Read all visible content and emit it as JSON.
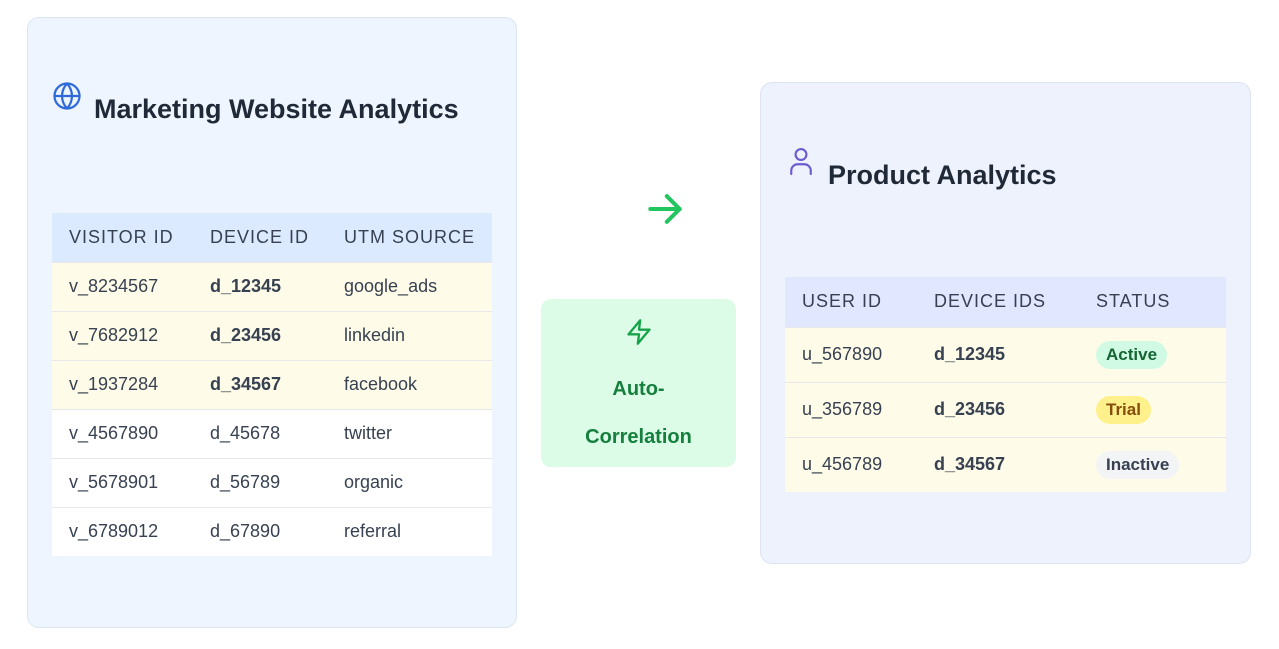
{
  "marketing": {
    "title": "Marketing Website Analytics",
    "icon": "globe-icon",
    "columns": [
      "VISITOR ID",
      "DEVICE ID",
      "UTM SOURCE"
    ],
    "rows": [
      {
        "visitor_id": "v_8234567",
        "device_id": "d_12345",
        "utm_source": "google_ads",
        "highlighted": true
      },
      {
        "visitor_id": "v_7682912",
        "device_id": "d_23456",
        "utm_source": "linkedin",
        "highlighted": true
      },
      {
        "visitor_id": "v_1937284",
        "device_id": "d_34567",
        "utm_source": "facebook",
        "highlighted": true
      },
      {
        "visitor_id": "v_4567890",
        "device_id": "d_45678",
        "utm_source": "twitter",
        "highlighted": false
      },
      {
        "visitor_id": "v_5678901",
        "device_id": "d_56789",
        "utm_source": "organic",
        "highlighted": false
      },
      {
        "visitor_id": "v_6789012",
        "device_id": "d_67890",
        "utm_source": "referral",
        "highlighted": false
      }
    ]
  },
  "connector": {
    "arrow_icon": "arrow-right-icon",
    "bolt_icon": "lightning-bolt-icon",
    "label": "Auto-Correlation"
  },
  "product": {
    "title": "Product Analytics",
    "icon": "user-icon",
    "columns": [
      "USER ID",
      "DEVICE IDS",
      "STATUS"
    ],
    "rows": [
      {
        "user_id": "u_567890",
        "device_ids": "d_12345",
        "status": "Active"
      },
      {
        "user_id": "u_356789",
        "device_ids": "d_23456",
        "status": "Trial"
      },
      {
        "user_id": "u_456789",
        "device_ids": "d_34567",
        "status": "Inactive"
      }
    ]
  },
  "colors": {
    "marketing_bg": "#eef5ff",
    "product_bg": "#eef2fd",
    "highlight_row": "#fefce8",
    "connector_green": "#22c55e",
    "device_link_blue": "#2f6bd8",
    "device_link_purple": "#5b47c8"
  }
}
